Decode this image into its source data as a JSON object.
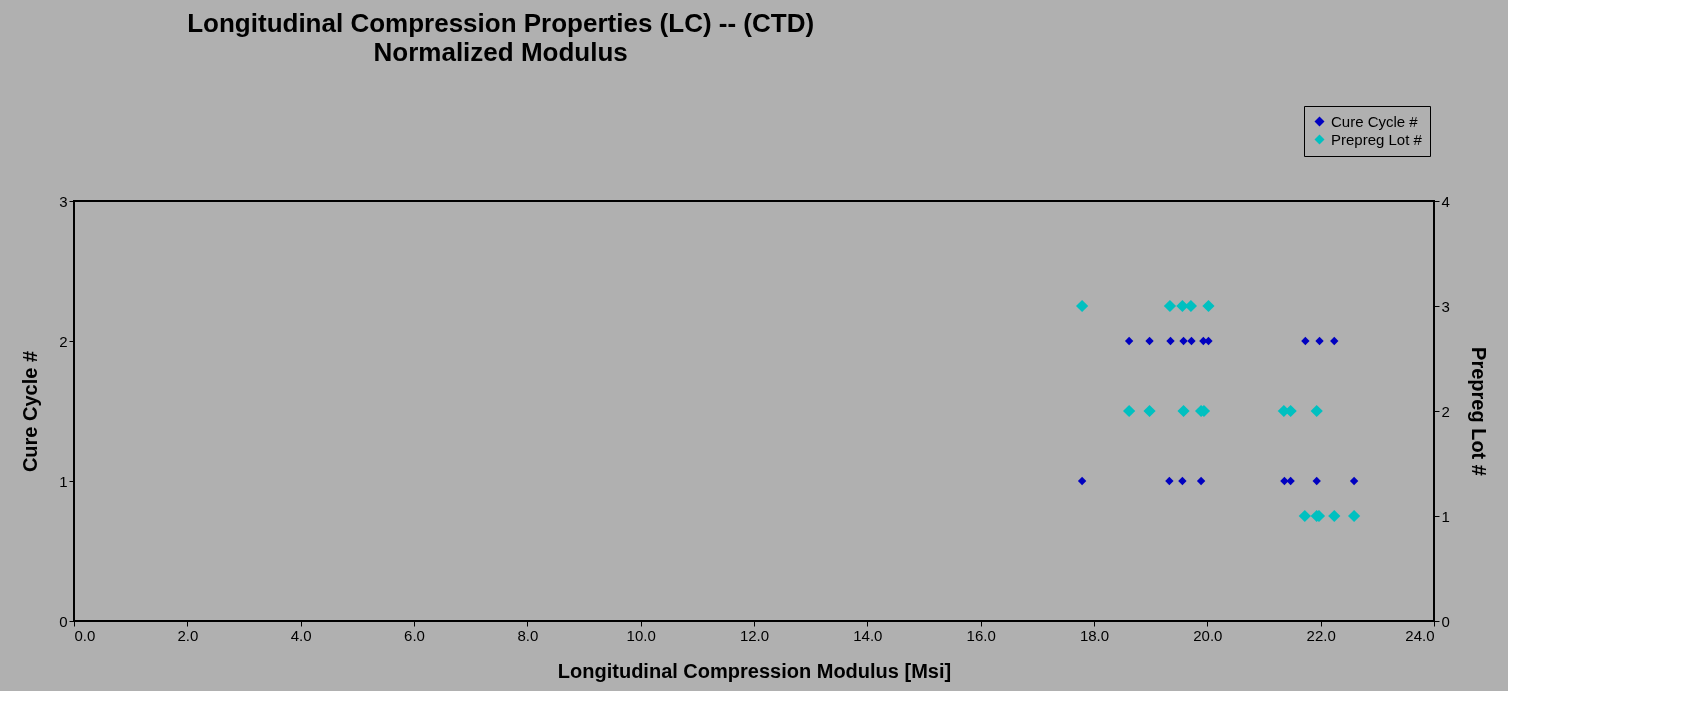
{
  "chart_data": {
    "type": "scatter",
    "title": "Longitudinal Compression Properties (LC) --  (CTD)",
    "subtitle": "Normalized Modulus",
    "xlabel": "Longitudinal Compression  Modulus  [Msi]",
    "ylabel": "Cure Cycle  #",
    "y2label": "Prepreg Lot #",
    "xlim": [
      0,
      24
    ],
    "xticks": [
      {
        "value": 0,
        "label": "0.0"
      },
      {
        "value": 2,
        "label": "2.0"
      },
      {
        "value": 4,
        "label": "4.0"
      },
      {
        "value": 6,
        "label": "6.0"
      },
      {
        "value": 8,
        "label": "8.0"
      },
      {
        "value": 10,
        "label": "10.0"
      },
      {
        "value": 12,
        "label": "12.0"
      },
      {
        "value": 14,
        "label": "14.0"
      },
      {
        "value": 16,
        "label": "16.0"
      },
      {
        "value": 18,
        "label": "18.0"
      },
      {
        "value": 20,
        "label": "20.0"
      },
      {
        "value": 22,
        "label": "22.0"
      },
      {
        "value": 24,
        "label": "24.0"
      }
    ],
    "ylim": [
      0,
      3
    ],
    "yticks": [
      0,
      1,
      2,
      3
    ],
    "y2lim": [
      0,
      4
    ],
    "y2ticks": [
      0,
      1,
      2,
      3,
      4
    ],
    "marker": "diamond",
    "legend": "top right",
    "series": [
      {
        "name": "Cure Cycle #",
        "color": "#0000c0",
        "axis": "y",
        "x": [
          18.62,
          18.98,
          19.35,
          19.58,
          19.72,
          19.93,
          20.02,
          21.73,
          21.98,
          22.24,
          17.79,
          19.33,
          19.56,
          19.89,
          21.36,
          21.47,
          21.93,
          22.59
        ],
        "values": [
          2,
          2,
          2,
          2,
          2,
          2,
          2,
          2,
          2,
          2,
          1,
          1,
          1,
          1,
          1,
          1,
          1,
          1
        ]
      },
      {
        "name": "Prepreg Lot #",
        "color": "#00c0c0",
        "axis": "y2",
        "x": [
          17.79,
          19.34,
          19.56,
          19.71,
          20.02,
          18.62,
          18.98,
          19.58,
          19.89,
          19.94,
          21.35,
          21.47,
          21.93,
          21.72,
          21.93,
          21.97,
          22.24,
          22.59
        ],
        "values": [
          3,
          3,
          3,
          3,
          3,
          2,
          2,
          2,
          2,
          2,
          2,
          2,
          2,
          1,
          1,
          1,
          1,
          1
        ]
      }
    ]
  }
}
